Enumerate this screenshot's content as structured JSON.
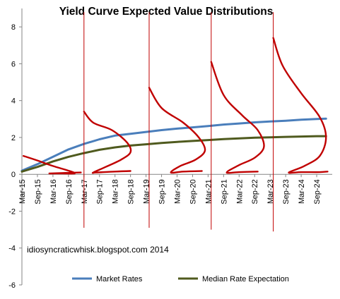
{
  "chart_data": {
    "type": "line",
    "title": "Yield Curve Expected Value Distributions",
    "xlabel": "",
    "ylabel": "",
    "ylim": [
      -6,
      9
    ],
    "yticks": [
      8,
      6,
      4,
      2,
      0,
      -2,
      -4,
      -6
    ],
    "grid": false,
    "legend_position": "bottom",
    "x_tick_labels": [
      "Mar-15",
      "Sep-15",
      "Mar-16",
      "Sep-16",
      "Mar-17",
      "Sep-17",
      "Mar-18",
      "Sep-18",
      "Mar-19",
      "Sep-19",
      "Mar-20",
      "Sep-20",
      "Mar-21",
      "Sep-21",
      "Mar-22",
      "Sep-22",
      "Mar-23",
      "Sep-23",
      "Mar-24",
      "Sep-24"
    ],
    "x": [
      0,
      0.5,
      1,
      1.5,
      2,
      2.5,
      3,
      3.5,
      4,
      4.5,
      5,
      5.5,
      6,
      6.5,
      7,
      7.5,
      8,
      8.5,
      9,
      9.5
    ],
    "series": [
      {
        "name": "Market Rates",
        "color": "#4a7ebb",
        "points": [
          [
            0,
            0.2
          ],
          [
            0.5,
            0.55
          ],
          [
            1,
            0.95
          ],
          [
            1.5,
            1.35
          ],
          [
            2,
            1.65
          ],
          [
            2.5,
            1.9
          ],
          [
            3,
            2.1
          ],
          [
            3.5,
            2.2
          ],
          [
            4,
            2.3
          ],
          [
            4.5,
            2.4
          ],
          [
            5,
            2.48
          ],
          [
            5.5,
            2.55
          ],
          [
            6,
            2.62
          ],
          [
            6.5,
            2.7
          ],
          [
            7,
            2.76
          ],
          [
            7.5,
            2.82
          ],
          [
            8,
            2.87
          ],
          [
            8.5,
            2.91
          ],
          [
            9,
            2.96
          ],
          [
            9.5,
            3.0
          ],
          [
            9.8,
            3.02
          ]
        ]
      },
      {
        "name": "Median Rate Expectation",
        "color": "#4f5a1e",
        "points": [
          [
            0,
            0.15
          ],
          [
            0.5,
            0.4
          ],
          [
            1,
            0.7
          ],
          [
            1.5,
            0.95
          ],
          [
            2,
            1.15
          ],
          [
            2.5,
            1.33
          ],
          [
            3,
            1.46
          ],
          [
            3.5,
            1.56
          ],
          [
            4,
            1.63
          ],
          [
            4.5,
            1.7
          ],
          [
            5,
            1.76
          ],
          [
            5.5,
            1.81
          ],
          [
            6,
            1.86
          ],
          [
            6.5,
            1.91
          ],
          [
            7,
            1.95
          ],
          [
            7.5,
            1.99
          ],
          [
            8,
            2.01
          ],
          [
            8.5,
            2.03
          ],
          [
            9,
            2.05
          ],
          [
            9.5,
            2.07
          ],
          [
            9.8,
            2.07
          ]
        ]
      }
    ],
    "distribution_annotations": {
      "color": "#c00000",
      "vertical_markers": [
        {
          "x": 2.0,
          "y_top": 8.8,
          "y_bottom": -2.9
        },
        {
          "x": 4.1,
          "y_top": 8.8,
          "y_bottom": -2.9
        },
        {
          "x": 6.1,
          "y_top": 8.8,
          "y_bottom": -3.0
        },
        {
          "x": 8.1,
          "y_top": 8.8,
          "y_bottom": -3.1
        }
      ],
      "curves": [
        {
          "points": [
            [
              0.05,
              1.0
            ],
            [
              0.5,
              0.75
            ],
            [
              1.0,
              0.45
            ],
            [
              1.5,
              0.2
            ],
            [
              1.7,
              0.05
            ],
            [
              1.3,
              0.05
            ],
            [
              0.9,
              0.05
            ],
            [
              1.9,
              0.1
            ]
          ]
        },
        {
          "points": [
            [
              2.0,
              3.4
            ],
            [
              2.3,
              2.8
            ],
            [
              2.9,
              2.4
            ],
            [
              3.4,
              1.7
            ],
            [
              3.5,
              1.2
            ],
            [
              3.2,
              0.8
            ],
            [
              2.7,
              0.4
            ],
            [
              2.3,
              0.1
            ],
            [
              2.4,
              0.1
            ],
            [
              3.0,
              0.15
            ],
            [
              3.5,
              0.18
            ]
          ]
        },
        {
          "points": [
            [
              4.1,
              4.7
            ],
            [
              4.5,
              3.6
            ],
            [
              5.2,
              2.8
            ],
            [
              5.7,
              2.0
            ],
            [
              5.9,
              1.3
            ],
            [
              5.6,
              0.8
            ],
            [
              5.1,
              0.45
            ],
            [
              4.8,
              0.1
            ],
            [
              5.2,
              0.15
            ],
            [
              5.8,
              0.18
            ]
          ]
        },
        {
          "points": [
            [
              6.1,
              6.1
            ],
            [
              6.5,
              4.3
            ],
            [
              7.1,
              3.2
            ],
            [
              7.6,
              2.4
            ],
            [
              7.8,
              1.5
            ],
            [
              7.5,
              0.9
            ],
            [
              7.0,
              0.5
            ],
            [
              6.6,
              0.1
            ],
            [
              7.0,
              0.12
            ],
            [
              7.6,
              0.15
            ]
          ]
        },
        {
          "points": [
            [
              8.1,
              7.4
            ],
            [
              8.4,
              5.9
            ],
            [
              9.0,
              4.4
            ],
            [
              9.6,
              3.1
            ],
            [
              9.8,
              2.0
            ],
            [
              9.6,
              1.0
            ],
            [
              9.1,
              0.45
            ],
            [
              8.6,
              0.1
            ],
            [
              9.0,
              0.12
            ],
            [
              9.6,
              0.12
            ],
            [
              9.85,
              0.15
            ]
          ]
        }
      ]
    },
    "annotations": [
      "idiosyncraticwhisk.blogspot.com  2014"
    ]
  }
}
